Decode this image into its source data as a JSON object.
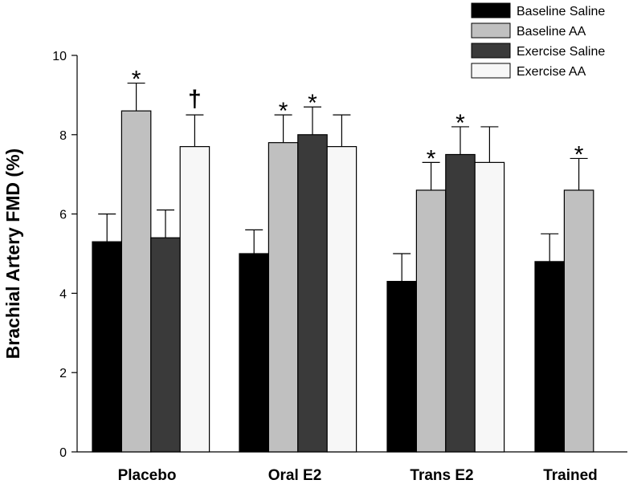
{
  "chart_data": {
    "type": "bar",
    "title": "",
    "xlabel": "",
    "ylabel": "Brachial Artery FMD (%)",
    "ylim": [
      0,
      10
    ],
    "yticks": [
      "0",
      "2",
      "4",
      "6",
      "8",
      "10"
    ],
    "grid": false,
    "legend_position": "top-right",
    "categories": [
      "Placebo",
      "Oral E2",
      "Trans E2",
      "Trained"
    ],
    "series": [
      {
        "name": "Baseline Saline",
        "color": "#000000",
        "values": [
          5.3,
          5.0,
          4.3,
          4.8
        ],
        "errors": [
          0.7,
          0.6,
          0.7,
          0.7
        ]
      },
      {
        "name": "Baseline AA",
        "color": "#c0c0c0",
        "values": [
          8.6,
          7.8,
          6.6,
          6.6
        ],
        "errors": [
          0.7,
          0.7,
          0.7,
          0.8
        ]
      },
      {
        "name": "Exercise Saline",
        "color": "#3a3a3a",
        "values": [
          5.4,
          8.0,
          7.5,
          null
        ],
        "errors": [
          0.7,
          0.7,
          0.7,
          null
        ]
      },
      {
        "name": "Exercise AA",
        "color": "#f7f7f7",
        "values": [
          7.7,
          7.7,
          7.3,
          null
        ],
        "errors": [
          0.8,
          0.8,
          0.9,
          null
        ]
      }
    ],
    "annotations": [
      {
        "category": 0,
        "series": 1,
        "text": "*"
      },
      {
        "category": 0,
        "series": 3,
        "text": "†"
      },
      {
        "category": 1,
        "series": 1,
        "text": "*"
      },
      {
        "category": 1,
        "series": 2,
        "text": "*"
      },
      {
        "category": 2,
        "series": 1,
        "text": "*"
      },
      {
        "category": 2,
        "series": 2,
        "text": "*"
      },
      {
        "category": 3,
        "series": 1,
        "text": "*"
      }
    ]
  }
}
